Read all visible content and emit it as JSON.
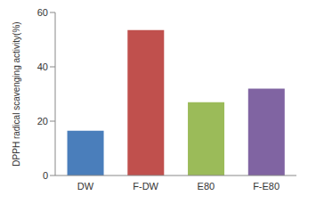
{
  "chart_data": {
    "type": "bar",
    "y_label": "DPPH radical scavenging activity(%)",
    "categories": [
      "DW",
      "F-DW",
      "E80",
      "F-E80"
    ],
    "values": [
      16.5,
      53.5,
      27,
      32
    ],
    "colors": [
      "#4a7ebb",
      "#c0504d",
      "#9bbb59",
      "#8064a2"
    ],
    "ylim": [
      0,
      60
    ],
    "yticks": [
      0,
      20,
      40,
      60
    ],
    "grid": false
  }
}
